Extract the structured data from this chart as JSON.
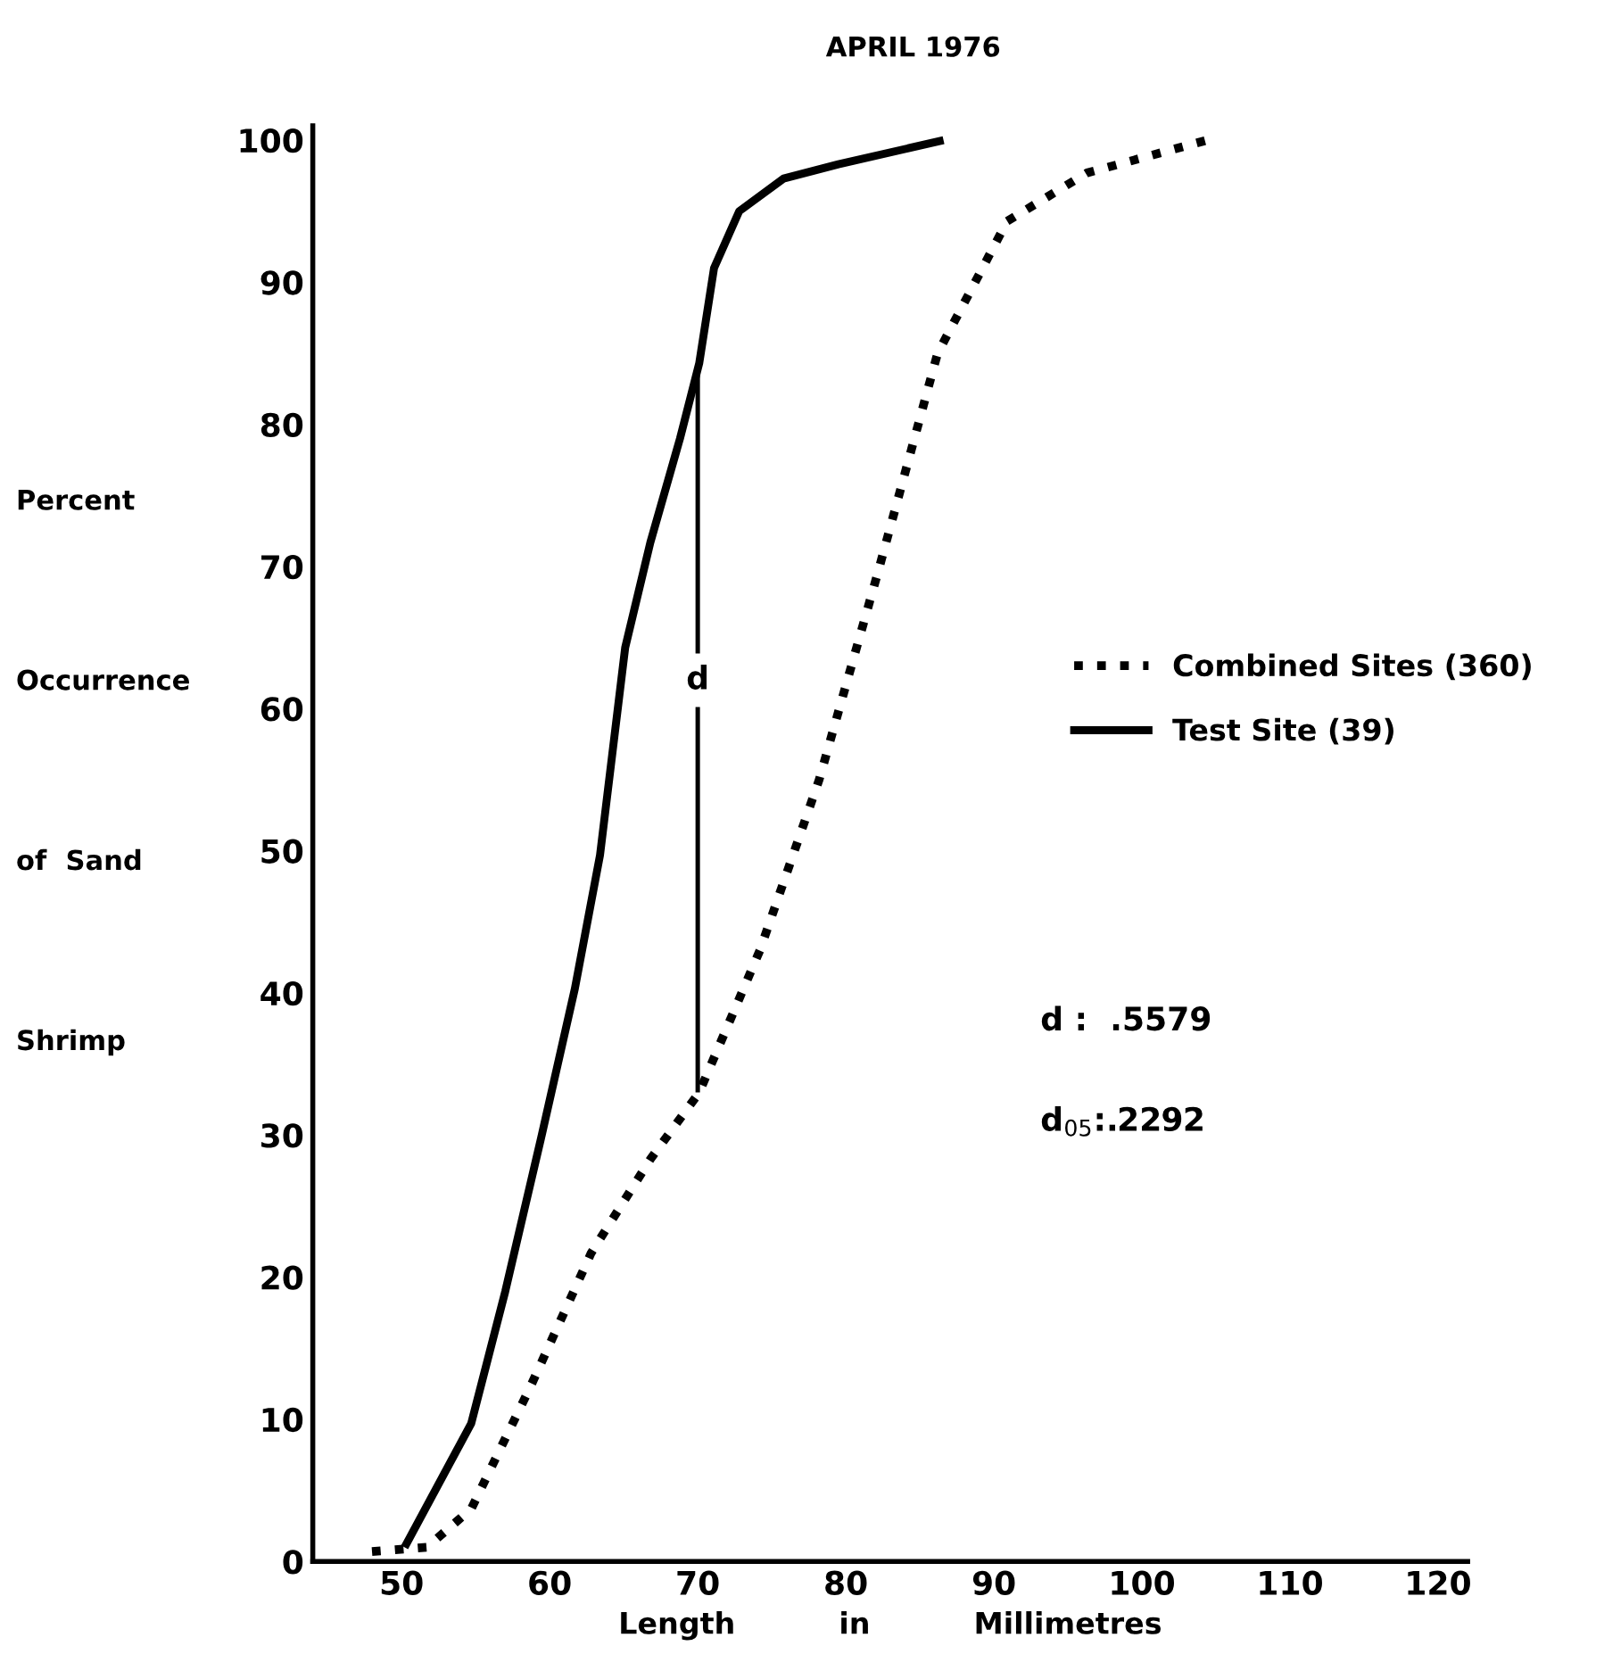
{
  "chart_data": {
    "type": "line",
    "title": "APRIL 1976",
    "xlabel": "Length          in          Millimetres",
    "ylabel": "Percent\n\n\n\nOccurrence\n\n\n\nof  Sand\n\n\n\nShrimp",
    "xlim": [
      44,
      122
    ],
    "ylim": [
      0,
      101
    ],
    "xticks": [
      50,
      60,
      70,
      80,
      90,
      100,
      110,
      120
    ],
    "yticks": [
      0,
      10,
      20,
      30,
      40,
      50,
      60,
      70,
      80,
      90,
      100
    ],
    "grid": false,
    "legend": "right",
    "marker": "none",
    "series": [
      {
        "name": "Combined Sites (360)",
        "color": "#000000",
        "line_style": "dotted",
        "x": [
          48,
          51.7,
          54.7,
          58.7,
          62.8,
          66.8,
          70.1,
          74.2,
          78.2,
          82.2,
          86.2,
          90.9,
          96.3,
          104.4
        ],
        "values": [
          0.7,
          1,
          3.7,
          12.3,
          21.7,
          28.3,
          33,
          43,
          55,
          69.7,
          85,
          94.3,
          97.7,
          100
        ]
      },
      {
        "name": "Test Site (39)",
        "color": "#000000",
        "line_style": "solid",
        "x": [
          50.2,
          54.7,
          57,
          59.4,
          61.7,
          63.4,
          65.1,
          66.8,
          68.8,
          70.1,
          71.1,
          72.8,
          75.8,
          79.5,
          86.6
        ],
        "values": [
          1,
          9.7,
          19,
          29.7,
          40.3,
          49.7,
          64.3,
          71.7,
          79,
          84.3,
          91,
          95,
          97.3,
          98.3,
          100
        ]
      },
      {
        "color": "#000000",
        "line_style": "solid",
        "x": [
          70,
          70
        ],
        "values": [
          33,
          84
        ]
      }
    ],
    "annotations": [
      {
        "text": "d",
        "x": 70,
        "y": 62
      },
      "d :  .5579",
      "d$_{05}$:.2292"
    ]
  }
}
